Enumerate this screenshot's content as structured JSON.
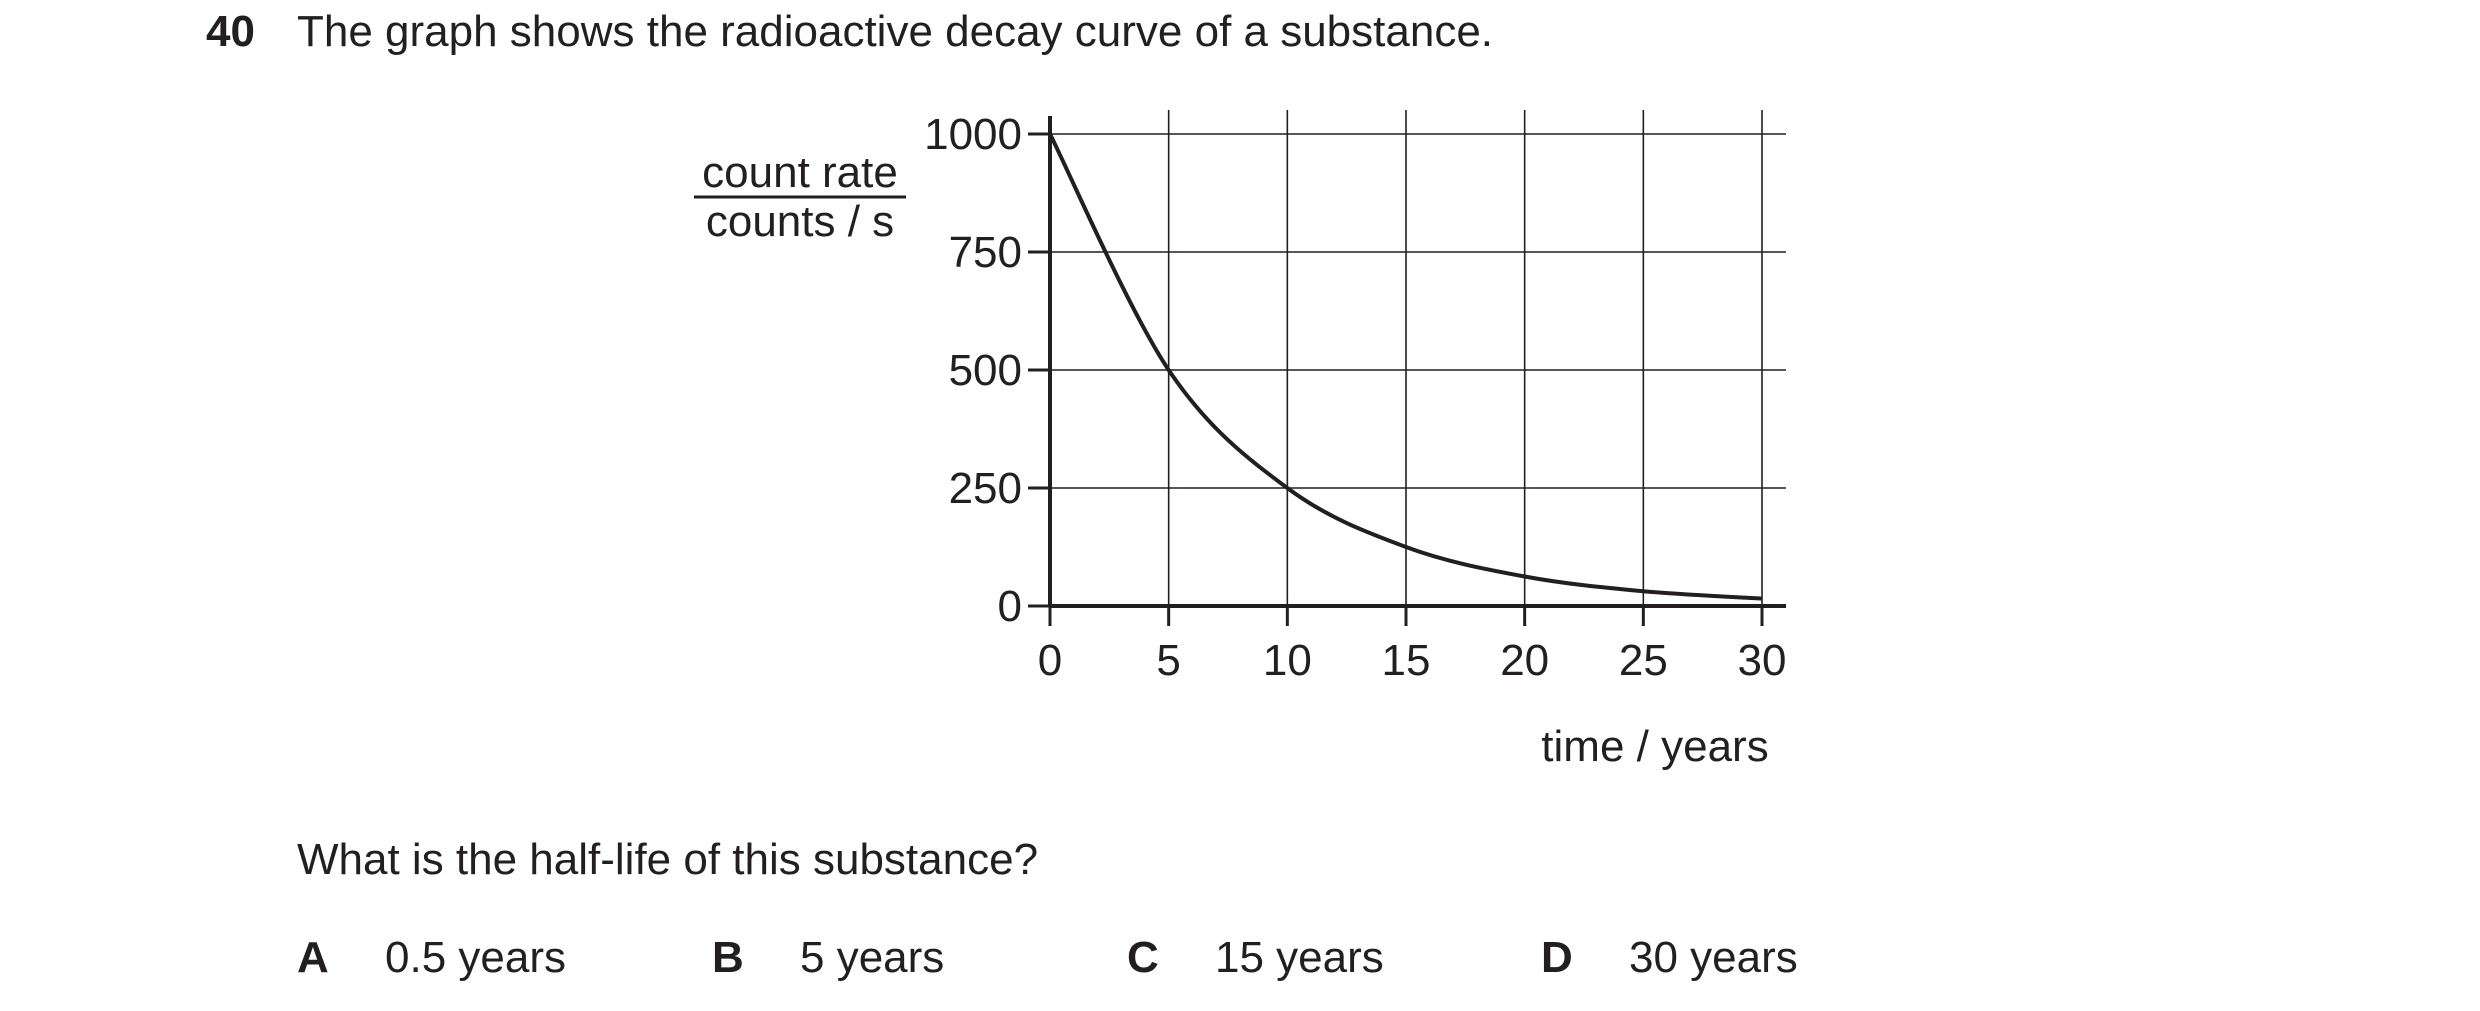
{
  "question": {
    "number": "40",
    "stem": "The graph shows the radioactive decay curve of a substance.",
    "prompt": "What is the half-life of this substance?",
    "options": [
      {
        "letter": "A",
        "text": "0.5 years"
      },
      {
        "letter": "B",
        "text": "5 years"
      },
      {
        "letter": "C",
        "text": "15 years"
      },
      {
        "letter": "D",
        "text": "30 years"
      }
    ]
  },
  "chart_data": {
    "type": "line",
    "title": "",
    "ylabel_top": "count rate",
    "ylabel_bottom": "counts / s",
    "xlabel": "time / years",
    "xlim": [
      0,
      30
    ],
    "ylim": [
      0,
      1000
    ],
    "x_ticks": [
      0,
      5,
      10,
      15,
      20,
      25,
      30
    ],
    "y_ticks": [
      0,
      250,
      500,
      750,
      1000
    ],
    "x_tick_labels": [
      "0",
      "5",
      "10",
      "15",
      "20",
      "25",
      "30"
    ],
    "y_tick_labels": [
      "0",
      "250",
      "500",
      "750",
      "1000"
    ],
    "grid": true,
    "series": [
      {
        "x": [
          0,
          5,
          10,
          15,
          20,
          25,
          30
        ],
        "y": [
          1000,
          500,
          250,
          125,
          62.5,
          31.25,
          15.6
        ]
      }
    ],
    "line_color": "#231f20"
  }
}
